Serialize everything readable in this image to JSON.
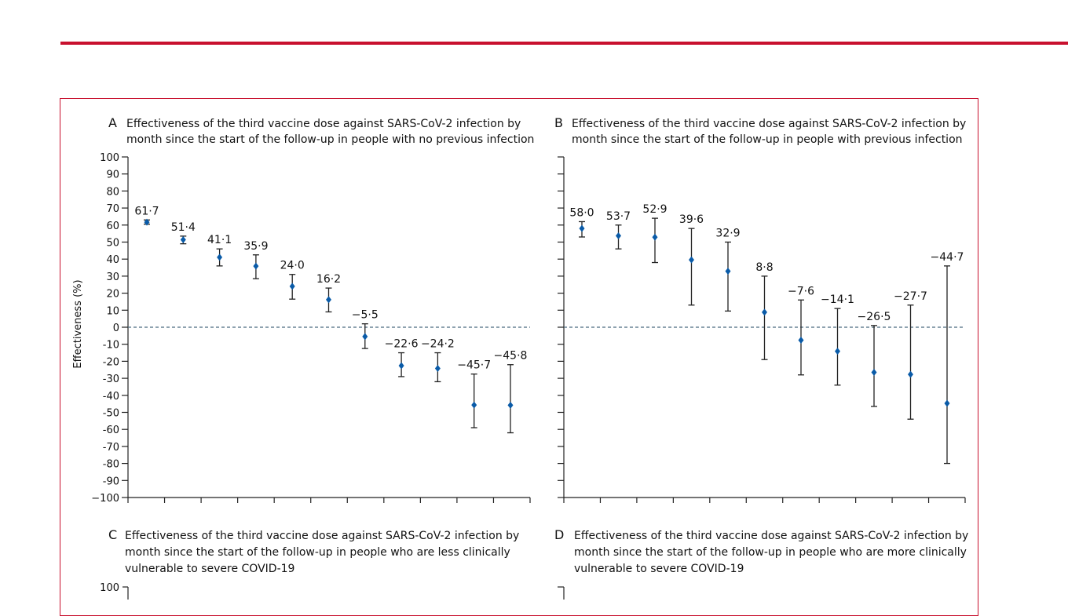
{
  "colors": {
    "rule": "#c8102e",
    "frame": "#c8102e",
    "marker": "#0a5ba8",
    "axis": "#222222",
    "refline": "#4b6b7f"
  },
  "ylabel": "Effectiveness (%)",
  "chart_data": [
    {
      "panel": "A",
      "type": "scatter",
      "title_line1": "Effectiveness of the third vaccine dose against SARS-CoV-2 infection by",
      "title_line2": "month since the start of the follow-up in people with no previous infection",
      "title_line3": "",
      "ylabel": "Effectiveness (%)",
      "ylim": [
        -100,
        100
      ],
      "yticks": [
        "100",
        "90",
        "80",
        "70",
        "60",
        "50",
        "40",
        "30",
        "20",
        "10",
        "0",
        "-10",
        "-20",
        "-30",
        "-40",
        "-50",
        "-60",
        "-70",
        "-80",
        "-90",
        "−100"
      ],
      "reference_line": 0,
      "points": [
        {
          "month": 1,
          "value": 61.7,
          "lower": 60.5,
          "upper": 63.0,
          "label": "61·7"
        },
        {
          "month": 2,
          "value": 51.4,
          "lower": 49.0,
          "upper": 53.5,
          "label": "51·4"
        },
        {
          "month": 3,
          "value": 41.1,
          "lower": 36.0,
          "upper": 46.0,
          "label": "41·1"
        },
        {
          "month": 4,
          "value": 35.9,
          "lower": 28.5,
          "upper": 42.5,
          "label": "35·9"
        },
        {
          "month": 5,
          "value": 24.0,
          "lower": 16.5,
          "upper": 31.0,
          "label": "24·0"
        },
        {
          "month": 6,
          "value": 16.2,
          "lower": 9.0,
          "upper": 23.0,
          "label": "16·2"
        },
        {
          "month": 7,
          "value": -5.5,
          "lower": -12.5,
          "upper": 2.0,
          "label": "−5·5"
        },
        {
          "month": 8,
          "value": -22.6,
          "lower": -29.0,
          "upper": -15.0,
          "label": "−22·6"
        },
        {
          "month": 9,
          "value": -24.2,
          "lower": -32.0,
          "upper": -15.0,
          "label": "−24·2"
        },
        {
          "month": 10,
          "value": -45.7,
          "lower": -59.0,
          "upper": -27.5,
          "label": "−45·7"
        },
        {
          "month": 11,
          "value": -45.8,
          "lower": -62.0,
          "upper": -22.0,
          "label": "−45·8"
        }
      ]
    },
    {
      "panel": "B",
      "type": "scatter",
      "title_line1": "Effectiveness of the third vaccine dose against SARS-CoV-2 infection by",
      "title_line2": "month since the start of the follow-up in people with previous infection",
      "title_line3": "",
      "ylim": [
        -100,
        100
      ],
      "reference_line": 0,
      "points": [
        {
          "month": 1,
          "value": 58.0,
          "lower": 53.0,
          "upper": 62.0,
          "label": "58·0"
        },
        {
          "month": 2,
          "value": 53.7,
          "lower": 46.0,
          "upper": 60.0,
          "label": "53·7"
        },
        {
          "month": 3,
          "value": 52.9,
          "lower": 38.0,
          "upper": 64.0,
          "label": "52·9"
        },
        {
          "month": 4,
          "value": 39.6,
          "lower": 13.0,
          "upper": 58.0,
          "label": "39·6"
        },
        {
          "month": 5,
          "value": 32.9,
          "lower": 9.5,
          "upper": 50.0,
          "label": "32·9"
        },
        {
          "month": 6,
          "value": 8.8,
          "lower": -19.0,
          "upper": 30.0,
          "label": "8·8"
        },
        {
          "month": 7,
          "value": -7.6,
          "lower": -28.0,
          "upper": 16.0,
          "label": "−7·6"
        },
        {
          "month": 8,
          "value": -14.1,
          "lower": -34.0,
          "upper": 11.0,
          "label": "−14·1"
        },
        {
          "month": 9,
          "value": -26.5,
          "lower": -46.5,
          "upper": 1.0,
          "label": "−26·5"
        },
        {
          "month": 10,
          "value": -27.7,
          "lower": -54.0,
          "upper": 13.0,
          "label": "−27·7"
        },
        {
          "month": 11,
          "value": -44.7,
          "lower": -80.0,
          "upper": 36.0,
          "label": "−44·7"
        }
      ]
    },
    {
      "panel": "C",
      "type": "scatter",
      "title_line1": "Effectiveness of the third vaccine dose against SARS-CoV-2 infection by",
      "title_line2": "month since the start of the follow-up in people who are less clinically",
      "title_line3": "vulnerable to severe COVID-19",
      "yticks_visible": [
        "100"
      ],
      "points": []
    },
    {
      "panel": "D",
      "type": "scatter",
      "title_line1": "Effectiveness of the third vaccine dose against SARS-CoV-2 infection by",
      "title_line2": "month since the start of the follow-up in people who are more clinically",
      "title_line3": "vulnerable to severe COVID-19",
      "points": []
    }
  ]
}
